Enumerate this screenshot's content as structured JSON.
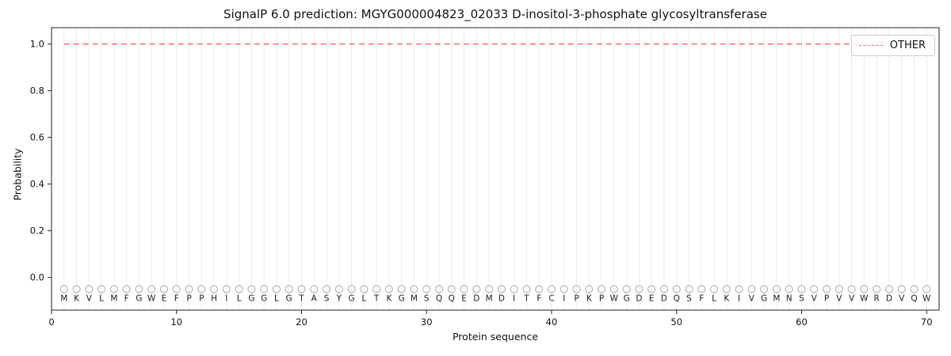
{
  "chart_data": {
    "type": "line",
    "title": "SignalP 6.0 prediction: MGYG000004823_02033 D-inositol-3-phosphate glycosyltransferase",
    "xlabel": "Protein sequence",
    "ylabel": "Probability",
    "xlim": [
      0,
      71
    ],
    "ylim": [
      -0.14,
      1.07
    ],
    "x_ticks": [
      0,
      10,
      20,
      30,
      40,
      50,
      60,
      70
    ],
    "y_ticks": [
      0.0,
      0.2,
      0.4,
      0.6,
      0.8,
      1.0
    ],
    "grid": "vertical-per-residue",
    "grid_color": "#ebebeb",
    "frame_color": "#222222",
    "series": [
      {
        "name": "OTHER",
        "style": "dashed",
        "color": "#f87171",
        "constant_value": 1.0,
        "x_start": 1,
        "x_end": 70
      }
    ],
    "sequence": [
      "M",
      "K",
      "V",
      "L",
      "M",
      "F",
      "G",
      "W",
      "E",
      "F",
      "P",
      "P",
      "H",
      "I",
      "L",
      "G",
      "G",
      "L",
      "G",
      "T",
      "A",
      "S",
      "Y",
      "G",
      "L",
      "T",
      "K",
      "G",
      "M",
      "S",
      "Q",
      "Q",
      "E",
      "D",
      "M",
      "D",
      "I",
      "T",
      "F",
      "C",
      "I",
      "P",
      "K",
      "P",
      "W",
      "G",
      "D",
      "E",
      "D",
      "Q",
      "S",
      "F",
      "L",
      "K",
      "I",
      "V",
      "G",
      "M",
      "N",
      "S",
      "V",
      "P",
      "V",
      "V",
      "W",
      "R",
      "D",
      "V",
      "Q",
      "W"
    ],
    "marker_y": -0.05,
    "marker_color": "#aaaaaa",
    "letter_color": "#222222",
    "legend": {
      "position": "upper right",
      "entries": [
        {
          "label": "OTHER",
          "color": "#f87171",
          "dash": true
        }
      ]
    }
  }
}
